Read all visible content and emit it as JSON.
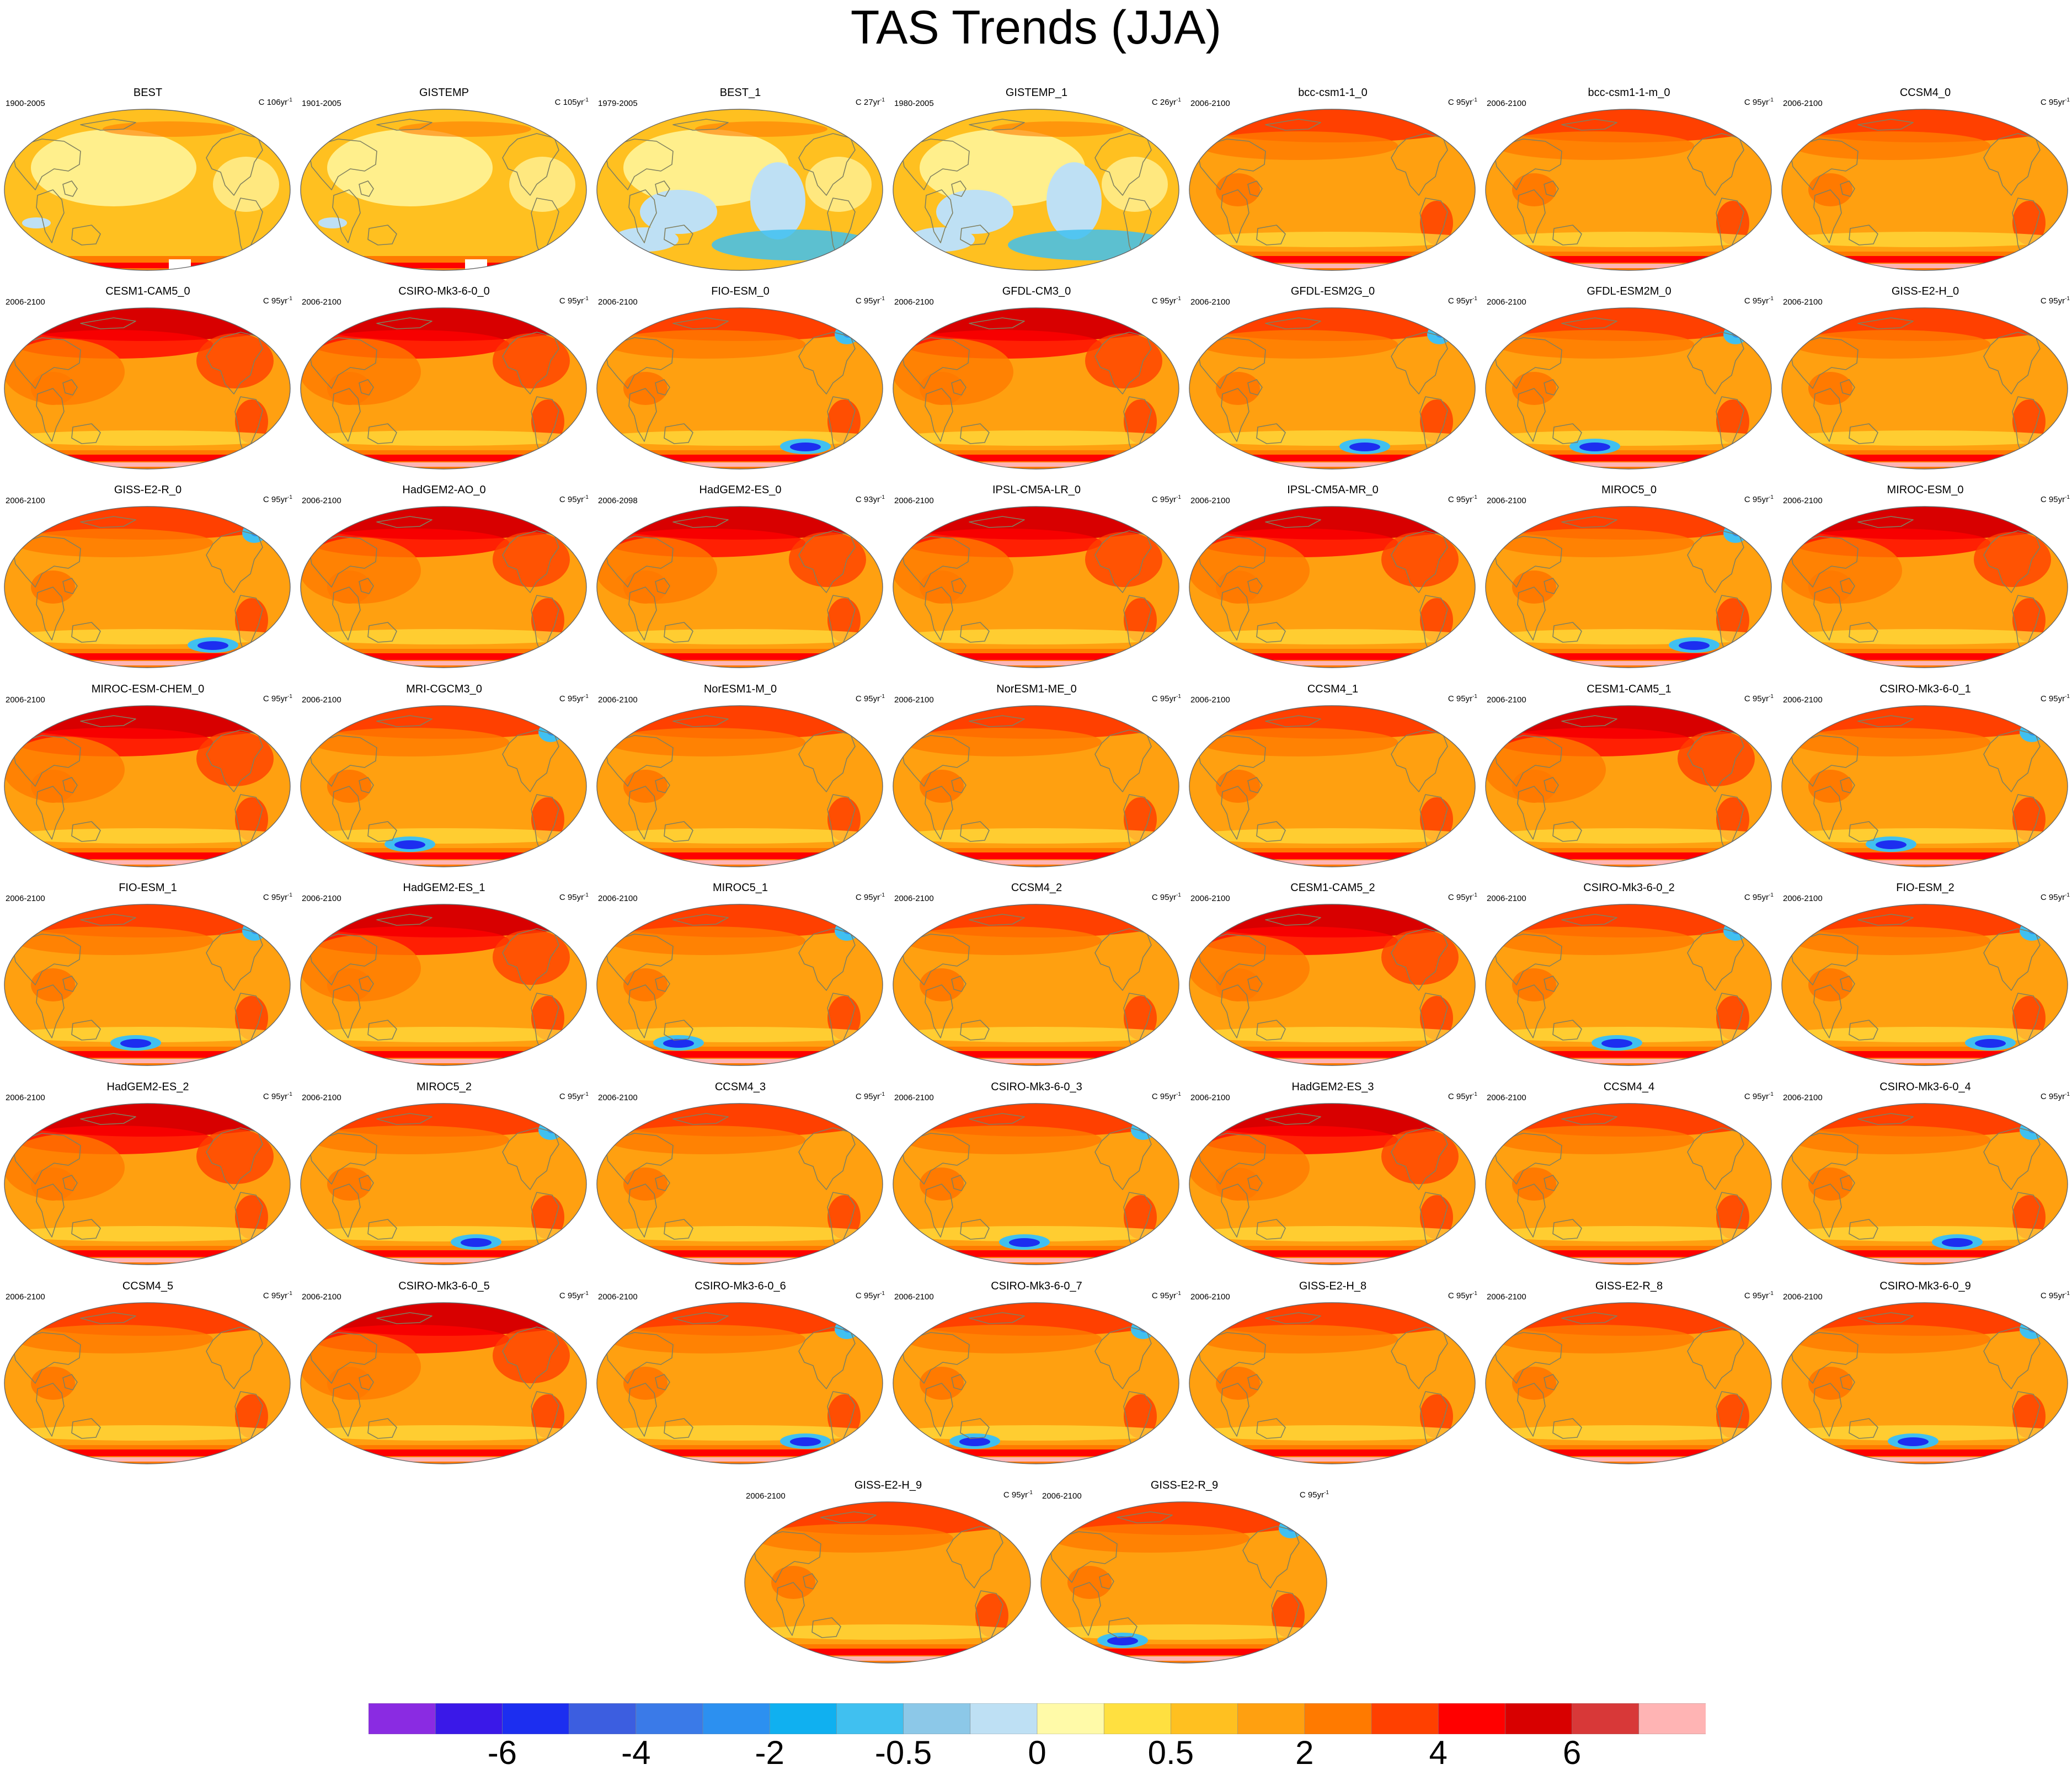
{
  "title": "TAS Trends (JJA)",
  "colorbar": {
    "colors": [
      "#8a2be2",
      "#3a18e8",
      "#1c2ef0",
      "#3c5ee0",
      "#3a7ae8",
      "#2c90f0",
      "#10b0f0",
      "#40c0f0",
      "#8cc8e8",
      "#bee0f4",
      "#fffaa8",
      "#ffe040",
      "#ffc020",
      "#ffa010",
      "#ff7a00",
      "#ff4000",
      "#ff0000",
      "#d80000",
      "#d83838",
      "#ffb4b4"
    ],
    "tick_labels": [
      "-6",
      "-4",
      "-2",
      "-0.5",
      "0",
      "0.5",
      "2",
      "4",
      "6"
    ]
  },
  "panels": [
    {
      "name": "BEST",
      "period": "1900-2005",
      "unit": "C 106yr",
      "sup": "-1",
      "style": "obs"
    },
    {
      "name": "GISTEMP",
      "period": "1901-2005",
      "unit": "C 105yr",
      "sup": "-1",
      "style": "obs"
    },
    {
      "name": "BEST_1",
      "period": "1979-2005",
      "unit": "C 27yr",
      "sup": "-1",
      "style": "obs2"
    },
    {
      "name": "GISTEMP_1",
      "period": "1980-2005",
      "unit": "C 26yr",
      "sup": "-1",
      "style": "obs2"
    },
    {
      "name": "bcc-csm1-1_0",
      "period": "2006-2100",
      "unit": "C 95yr",
      "sup": "-1",
      "style": "model"
    },
    {
      "name": "bcc-csm1-1-m_0",
      "period": "2006-2100",
      "unit": "C 95yr",
      "sup": "-1",
      "style": "model"
    },
    {
      "name": "CCSM4_0",
      "period": "2006-2100",
      "unit": "C 95yr",
      "sup": "-1",
      "style": "model"
    },
    {
      "name": "CESM1-CAM5_0",
      "period": "2006-2100",
      "unit": "C 95yr",
      "sup": "-1",
      "style": "hot"
    },
    {
      "name": "CSIRO-Mk3-6-0_0",
      "period": "2006-2100",
      "unit": "C 95yr",
      "sup": "-1",
      "style": "hot"
    },
    {
      "name": "FIO-ESM_0",
      "period": "2006-2100",
      "unit": "C 95yr",
      "sup": "-1",
      "style": "cool"
    },
    {
      "name": "GFDL-CM3_0",
      "period": "2006-2100",
      "unit": "C 95yr",
      "sup": "-1",
      "style": "hot"
    },
    {
      "name": "GFDL-ESM2G_0",
      "period": "2006-2100",
      "unit": "C 95yr",
      "sup": "-1",
      "style": "cool"
    },
    {
      "name": "GFDL-ESM2M_0",
      "period": "2006-2100",
      "unit": "C 95yr",
      "sup": "-1",
      "style": "cool"
    },
    {
      "name": "GISS-E2-H_0",
      "period": "2006-2100",
      "unit": "C 95yr",
      "sup": "-1",
      "style": "model"
    },
    {
      "name": "GISS-E2-R_0",
      "period": "2006-2100",
      "unit": "C 95yr",
      "sup": "-1",
      "style": "cool"
    },
    {
      "name": "HadGEM2-AO_0",
      "period": "2006-2100",
      "unit": "C 95yr",
      "sup": "-1",
      "style": "hot"
    },
    {
      "name": "HadGEM2-ES_0",
      "period": "2006-2098",
      "unit": "C 93yr",
      "sup": "-1",
      "style": "hot"
    },
    {
      "name": "IPSL-CM5A-LR_0",
      "period": "2006-2100",
      "unit": "C 95yr",
      "sup": "-1",
      "style": "hot"
    },
    {
      "name": "IPSL-CM5A-MR_0",
      "period": "2006-2100",
      "unit": "C 95yr",
      "sup": "-1",
      "style": "hot"
    },
    {
      "name": "MIROC5_0",
      "period": "2006-2100",
      "unit": "C 95yr",
      "sup": "-1",
      "style": "cool"
    },
    {
      "name": "MIROC-ESM_0",
      "period": "2006-2100",
      "unit": "C 95yr",
      "sup": "-1",
      "style": "hot"
    },
    {
      "name": "MIROC-ESM-CHEM_0",
      "period": "2006-2100",
      "unit": "C 95yr",
      "sup": "-1",
      "style": "hot"
    },
    {
      "name": "MRI-CGCM3_0",
      "period": "2006-2100",
      "unit": "C 95yr",
      "sup": "-1",
      "style": "cool"
    },
    {
      "name": "NorESM1-M_0",
      "period": "2006-2100",
      "unit": "C 95yr",
      "sup": "-1",
      "style": "model"
    },
    {
      "name": "NorESM1-ME_0",
      "period": "2006-2100",
      "unit": "C 95yr",
      "sup": "-1",
      "style": "model"
    },
    {
      "name": "CCSM4_1",
      "period": "2006-2100",
      "unit": "C 95yr",
      "sup": "-1",
      "style": "model"
    },
    {
      "name": "CESM1-CAM5_1",
      "period": "2006-2100",
      "unit": "C 95yr",
      "sup": "-1",
      "style": "hot"
    },
    {
      "name": "CSIRO-Mk3-6-0_1",
      "period": "2006-2100",
      "unit": "C 95yr",
      "sup": "-1",
      "style": "cool"
    },
    {
      "name": "FIO-ESM_1",
      "period": "2006-2100",
      "unit": "C 95yr",
      "sup": "-1",
      "style": "cool"
    },
    {
      "name": "HadGEM2-ES_1",
      "period": "2006-2100",
      "unit": "C 95yr",
      "sup": "-1",
      "style": "hot"
    },
    {
      "name": "MIROC5_1",
      "period": "2006-2100",
      "unit": "C 95yr",
      "sup": "-1",
      "style": "cool"
    },
    {
      "name": "CCSM4_2",
      "period": "2006-2100",
      "unit": "C 95yr",
      "sup": "-1",
      "style": "model"
    },
    {
      "name": "CESM1-CAM5_2",
      "period": "2006-2100",
      "unit": "C 95yr",
      "sup": "-1",
      "style": "hot"
    },
    {
      "name": "CSIRO-Mk3-6-0_2",
      "period": "2006-2100",
      "unit": "C 95yr",
      "sup": "-1",
      "style": "cool"
    },
    {
      "name": "FIO-ESM_2",
      "period": "2006-2100",
      "unit": "C 95yr",
      "sup": "-1",
      "style": "cool"
    },
    {
      "name": "HadGEM2-ES_2",
      "period": "2006-2100",
      "unit": "C 95yr",
      "sup": "-1",
      "style": "hot"
    },
    {
      "name": "MIROC5_2",
      "period": "2006-2100",
      "unit": "C 95yr",
      "sup": "-1",
      "style": "cool"
    },
    {
      "name": "CCSM4_3",
      "period": "2006-2100",
      "unit": "C 95yr",
      "sup": "-1",
      "style": "model"
    },
    {
      "name": "CSIRO-Mk3-6-0_3",
      "period": "2006-2100",
      "unit": "C 95yr",
      "sup": "-1",
      "style": "cool"
    },
    {
      "name": "HadGEM2-ES_3",
      "period": "2006-2100",
      "unit": "C 95yr",
      "sup": "-1",
      "style": "hot"
    },
    {
      "name": "CCSM4_4",
      "period": "2006-2100",
      "unit": "C 95yr",
      "sup": "-1",
      "style": "model"
    },
    {
      "name": "CSIRO-Mk3-6-0_4",
      "period": "2006-2100",
      "unit": "C 95yr",
      "sup": "-1",
      "style": "cool"
    },
    {
      "name": "CCSM4_5",
      "period": "2006-2100",
      "unit": "C 95yr",
      "sup": "-1",
      "style": "model"
    },
    {
      "name": "CSIRO-Mk3-6-0_5",
      "period": "2006-2100",
      "unit": "C 95yr",
      "sup": "-1",
      "style": "hot"
    },
    {
      "name": "CSIRO-Mk3-6-0_6",
      "period": "2006-2100",
      "unit": "C 95yr",
      "sup": "-1",
      "style": "cool"
    },
    {
      "name": "CSIRO-Mk3-6-0_7",
      "period": "2006-2100",
      "unit": "C 95yr",
      "sup": "-1",
      "style": "cool"
    },
    {
      "name": "GISS-E2-H_8",
      "period": "2006-2100",
      "unit": "C 95yr",
      "sup": "-1",
      "style": "model"
    },
    {
      "name": "GISS-E2-R_8",
      "period": "2006-2100",
      "unit": "C 95yr",
      "sup": "-1",
      "style": "model"
    },
    {
      "name": "CSIRO-Mk3-6-0_9",
      "period": "2006-2100",
      "unit": "C 95yr",
      "sup": "-1",
      "style": "cool"
    },
    {
      "name": "GISS-E2-H_9",
      "period": "2006-2100",
      "unit": "C 95yr",
      "sup": "-1",
      "style": "model"
    },
    {
      "name": "GISS-E2-R_9",
      "period": "2006-2100",
      "unit": "C 95yr",
      "sup": "-1",
      "style": "cool"
    }
  ]
}
